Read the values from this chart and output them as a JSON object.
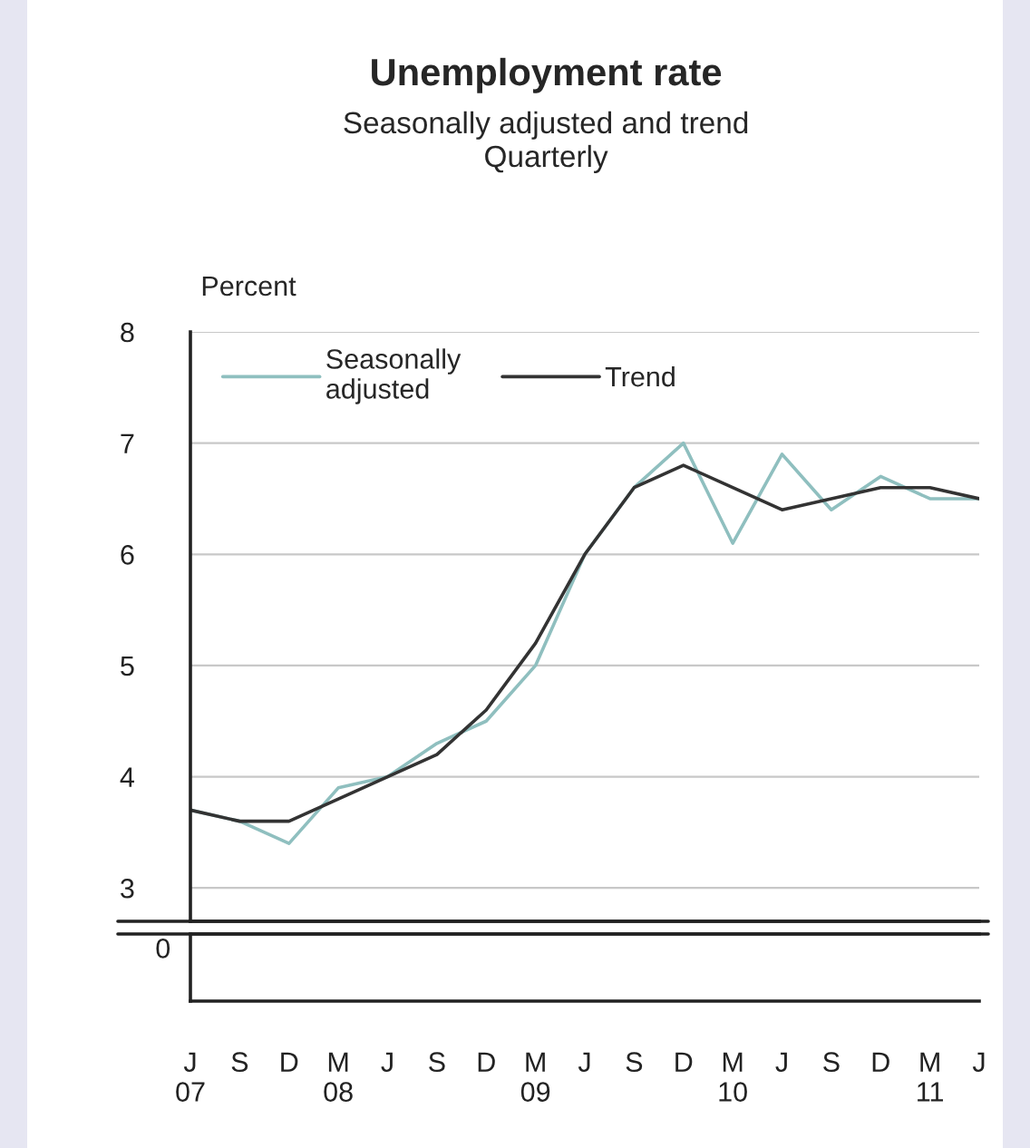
{
  "chart_data": {
    "type": "line",
    "title": "Unemployment rate",
    "subtitle": "Seasonally adjusted and trend\nQuarterly",
    "ylabel": "Percent",
    "categories": [
      "J\n07",
      "S",
      "D",
      "M\n08",
      "J",
      "S",
      "D",
      "M\n09",
      "J",
      "S",
      "D",
      "M\n10",
      "J",
      "S",
      "D",
      "M\n11",
      "J"
    ],
    "series": [
      {
        "name": "Seasonally\nadjusted",
        "color": "#8fbfbf",
        "values": [
          3.7,
          3.6,
          3.4,
          3.9,
          4.0,
          4.3,
          4.5,
          5.0,
          6.0,
          6.6,
          7.0,
          6.1,
          6.9,
          6.4,
          6.7,
          6.5,
          6.5
        ]
      },
      {
        "name": "Trend",
        "color": "#333333",
        "values": [
          3.7,
          3.6,
          3.6,
          3.8,
          4.0,
          4.2,
          4.6,
          5.2,
          6.0,
          6.6,
          6.8,
          6.6,
          6.4,
          6.5,
          6.6,
          6.6,
          6.5
        ]
      }
    ],
    "ylim": [
      2.7,
      8
    ],
    "yticks": [
      3,
      4,
      5,
      6,
      7,
      8
    ],
    "annotations": [
      "0"
    ],
    "grid": "y",
    "legend": "top left",
    "line_style": "solid"
  }
}
